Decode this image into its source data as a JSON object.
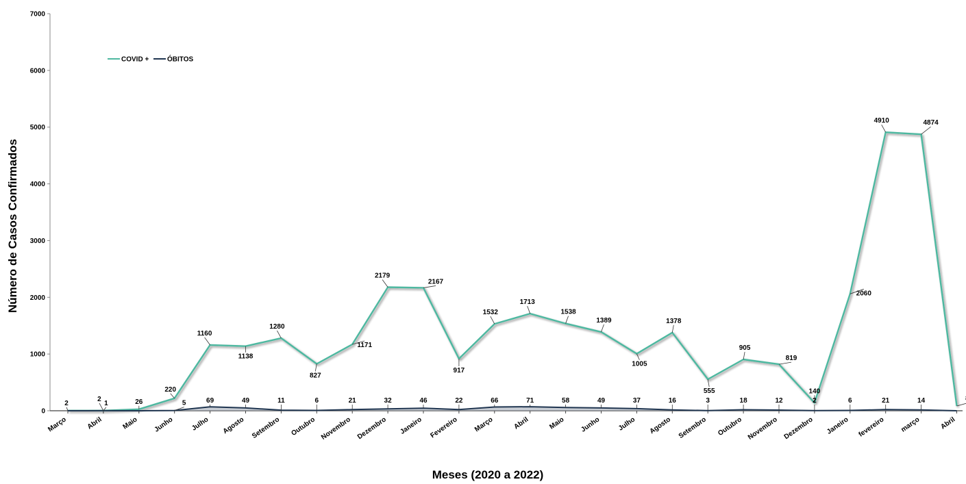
{
  "chart_data": {
    "type": "line",
    "xlabel": "Meses (2020 a 2022)",
    "ylabel": "Número de Casos Confirmados",
    "ylim": [
      0,
      7000
    ],
    "yticks": [
      0,
      1000,
      2000,
      3000,
      4000,
      5000,
      6000,
      7000
    ],
    "grid": false,
    "legend_position": "top-left",
    "categories": [
      "Março",
      "Abril",
      "Maio",
      "Junho",
      "Julho",
      "Agosto",
      "Setembro",
      "Outubro",
      "Novembro",
      "Dezembro",
      "Janeiro",
      "Fevereiro",
      "Março",
      "Abril",
      "Maio",
      "Junho",
      "Julho",
      "Agosto",
      "Setembro",
      "Outubro",
      "Novembro",
      "Dezembro",
      "Janeiro",
      "fevereiro",
      "março",
      "Abril"
    ],
    "series": [
      {
        "name": "COVID +",
        "color": "#4db8a0",
        "values": [
          2,
          2,
          26,
          220,
          1160,
          1138,
          1280,
          827,
          1171,
          2179,
          2167,
          917,
          1532,
          1713,
          1538,
          1389,
          1005,
          1378,
          555,
          905,
          819,
          140,
          2060,
          4910,
          4874,
          84
        ]
      },
      {
        "name": "ÓBITOS",
        "color": "#1f3550",
        "values": [
          null,
          1,
          null,
          5,
          69,
          49,
          11,
          6,
          21,
          32,
          46,
          22,
          66,
          71,
          58,
          49,
          37,
          16,
          3,
          18,
          12,
          2,
          6,
          21,
          14,
          null
        ]
      }
    ]
  }
}
